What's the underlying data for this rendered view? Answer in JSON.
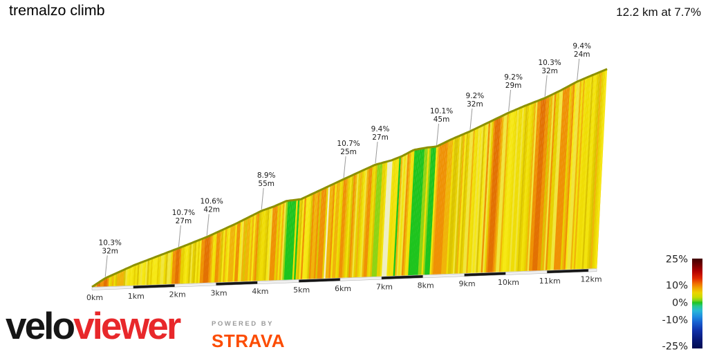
{
  "header": {
    "title": "tremalzo climb",
    "summary": "12.2 km at 7.7%"
  },
  "brand": {
    "velo": "velo",
    "viewer": "viewer",
    "powered_by": "POWERED BY",
    "strava": "STRAVA"
  },
  "chart_data": {
    "type": "area",
    "title": "tremalzo climb",
    "subtitle": "12.2 km at 7.7%",
    "total_km": 12.2,
    "avg_gradient": "7.7%",
    "x_ticks": [
      "0km",
      "1km",
      "2km",
      "3km",
      "4km",
      "5km",
      "6km",
      "7km",
      "8km",
      "9km",
      "10km",
      "11km",
      "12km"
    ],
    "profile": [
      [
        0,
        0
      ],
      [
        0.31,
        39
      ],
      [
        1,
        96
      ],
      [
        2.05,
        168
      ],
      [
        2.72,
        216
      ],
      [
        3.4,
        273
      ],
      [
        4.01,
        330
      ],
      [
        4.3,
        348
      ],
      [
        4.6,
        372
      ],
      [
        4.95,
        378
      ],
      [
        5.3,
        408
      ],
      [
        5.96,
        465
      ],
      [
        6.71,
        528
      ],
      [
        7.1,
        546
      ],
      [
        7.35,
        564
      ],
      [
        7.62,
        591
      ],
      [
        7.95,
        600
      ],
      [
        8.17,
        603
      ],
      [
        8.5,
        633
      ],
      [
        8.96,
        669
      ],
      [
        9.4,
        708
      ],
      [
        9.87,
        750
      ],
      [
        10.3,
        783
      ],
      [
        10.73,
        813
      ],
      [
        11.1,
        846
      ],
      [
        11.49,
        885
      ],
      [
        11.8,
        909
      ],
      [
        12.2,
        939
      ]
    ],
    "annotations": [
      {
        "km": 0.31,
        "gradient": "10.3%",
        "gain": "32m"
      },
      {
        "km": 2.05,
        "gradient": "10.7%",
        "gain": "27m"
      },
      {
        "km": 2.72,
        "gradient": "10.6%",
        "gain": "42m"
      },
      {
        "km": 4.01,
        "gradient": "8.9%",
        "gain": "55m"
      },
      {
        "km": 5.96,
        "gradient": "10.7%",
        "gain": "25m"
      },
      {
        "km": 6.71,
        "gradient": "9.4%",
        "gain": "27m"
      },
      {
        "km": 8.17,
        "gradient": "10.1%",
        "gain": "45m"
      },
      {
        "km": 8.96,
        "gradient": "9.2%",
        "gain": "32m"
      },
      {
        "km": 9.87,
        "gradient": "9.2%",
        "gain": "29m"
      },
      {
        "km": 10.73,
        "gradient": "10.3%",
        "gain": "32m"
      },
      {
        "km": 11.49,
        "gradient": "9.4%",
        "gain": "24m"
      }
    ],
    "gradient_bands": [
      {
        "from": 0.22,
        "to": 0.4,
        "g": 11.8
      },
      {
        "from": 0.28,
        "to": 0.34,
        "g": 13
      },
      {
        "from": 1.92,
        "to": 2.14,
        "g": 11.8
      },
      {
        "from": 2.0,
        "to": 2.08,
        "g": 13
      },
      {
        "from": 2.62,
        "to": 2.86,
        "g": 11.8
      },
      {
        "from": 2.7,
        "to": 2.8,
        "g": 13
      },
      {
        "from": 2.96,
        "to": 3.06,
        "g": 11.8
      },
      {
        "from": 4.27,
        "to": 4.4,
        "g": 11.8
      },
      {
        "from": 4.66,
        "to": 4.86,
        "g": 0.5
      },
      {
        "from": 5.46,
        "to": 5.56,
        "g": 11.8
      },
      {
        "from": 5.6,
        "to": 5.66,
        "color": "#f2f0c0"
      },
      {
        "from": 5.96,
        "to": 6.06,
        "g": 11.8
      },
      {
        "from": 6.2,
        "to": 6.26,
        "g": 11.8
      },
      {
        "from": 6.56,
        "to": 6.66,
        "g": 11.8
      },
      {
        "from": 7.02,
        "to": 7.12,
        "color": "#eeeec2"
      },
      {
        "from": 7.28,
        "to": 7.34,
        "g": 0.5
      },
      {
        "from": 7.63,
        "to": 7.9,
        "g": 0.5
      },
      {
        "from": 8.26,
        "to": 8.42,
        "g": 11.8
      },
      {
        "from": 9.5,
        "to": 9.72,
        "g": 11.8
      },
      {
        "from": 9.56,
        "to": 9.66,
        "g": 13
      },
      {
        "from": 10.56,
        "to": 10.82,
        "g": 11.8
      },
      {
        "from": 10.64,
        "to": 10.74,
        "g": 13
      },
      {
        "from": 11.16,
        "to": 11.26,
        "g": 11.8
      }
    ],
    "palette": {
      "green": "#1ec41e",
      "light_green": "#8ed414",
      "yellows": [
        "#f6e815",
        "#efdd06",
        "#e7d100",
        "#f2e30c",
        "#dbc401",
        "#f0e53d"
      ],
      "amber": "#f0b409",
      "orange": "#ef9105",
      "dark_orange": "#e27103",
      "ridge": "#8c9100"
    },
    "axis": {
      "bar_dark": "#161616",
      "bar_light": "#efefef"
    },
    "legend": {
      "position": "right",
      "ticks": [
        {
          "label": "25%",
          "value": 25
        },
        {
          "label": "10%",
          "value": 10
        },
        {
          "label": "0%",
          "value": 0
        },
        {
          "label": "-10%",
          "value": -10
        },
        {
          "label": "-25%",
          "value": -25
        }
      ],
      "stops": [
        {
          "o": 0,
          "c": "#400000"
        },
        {
          "o": 0.06,
          "c": "#6b0000"
        },
        {
          "o": 0.14,
          "c": "#b00000"
        },
        {
          "o": 0.22,
          "c": "#e02800"
        },
        {
          "o": 0.28,
          "c": "#f07000"
        },
        {
          "o": 0.33,
          "c": "#f0a800"
        },
        {
          "o": 0.38,
          "c": "#ecd400"
        },
        {
          "o": 0.43,
          "c": "#c8dc00"
        },
        {
          "o": 0.465,
          "c": "#7ed41e"
        },
        {
          "o": 0.49,
          "c": "#1ec41e"
        },
        {
          "o": 0.53,
          "c": "#26c890"
        },
        {
          "o": 0.58,
          "c": "#28b8d8"
        },
        {
          "o": 0.64,
          "c": "#2090e0"
        },
        {
          "o": 0.71,
          "c": "#1860d0"
        },
        {
          "o": 0.8,
          "c": "#1030a8"
        },
        {
          "o": 0.9,
          "c": "#081878"
        },
        {
          "o": 1,
          "c": "#000c50"
        }
      ]
    }
  }
}
